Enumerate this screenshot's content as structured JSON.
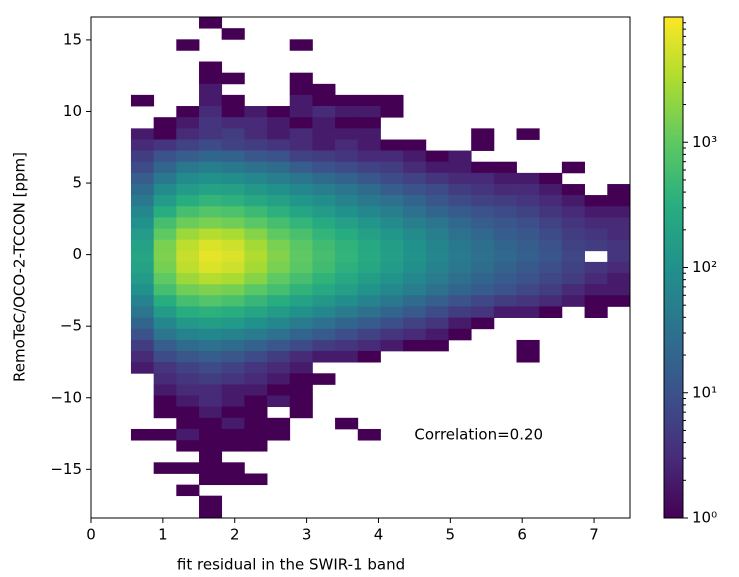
{
  "chart_data": {
    "type": "hist2d",
    "xlabel": "fit residual in the SWIR-1 band",
    "ylabel": "RemoTeC/OCO-2-TCCON [ppm]",
    "annotation": "Correlation=0.20",
    "colormap": "viridis",
    "log_color": true,
    "xlim": [
      0,
      7.5
    ],
    "ylim": [
      -18.4,
      16.6
    ],
    "xticks": [
      0,
      1,
      2,
      3,
      4,
      5,
      6,
      7
    ],
    "yticks": [
      {
        "value": -15,
        "label": "−15"
      },
      {
        "value": -10,
        "label": "−10"
      },
      {
        "value": -5,
        "label": "−5"
      },
      0,
      5,
      10,
      15
    ],
    "clim": [
      1,
      10000
    ],
    "cticks": [
      {
        "value": 1,
        "label": "10⁰"
      },
      {
        "value": 10,
        "label": "10¹"
      },
      {
        "value": 100,
        "label": "10²"
      },
      {
        "value": 1000,
        "label": "10³"
      }
    ],
    "xbins": [
      0.556,
      0.872,
      1.187,
      1.503,
      1.818,
      2.134,
      2.45,
      2.765,
      3.081,
      3.396,
      3.712,
      4.028,
      4.343,
      4.659,
      4.974,
      5.29,
      5.606,
      5.921,
      6.237,
      6.552,
      6.868,
      7.184,
      7.5
    ],
    "ybins": [
      16.6,
      15.82,
      15.04,
      14.27,
      13.49,
      12.71,
      11.93,
      11.16,
      10.38,
      9.6,
      8.82,
      8.04,
      7.27,
      6.49,
      5.71,
      4.93,
      4.16,
      3.38,
      2.6,
      1.82,
      1.04,
      0.27,
      -0.51,
      -1.29,
      -2.07,
      -2.84,
      -3.62,
      -4.4,
      -5.18,
      -5.96,
      -6.73,
      -7.51,
      -8.29,
      -9.07,
      -9.84,
      -10.62,
      -11.4,
      -12.18,
      -12.96,
      -13.73,
      -14.51,
      -15.29,
      -16.07,
      -16.84,
      -17.62,
      -18.4
    ],
    "counts": [
      [
        null,
        null,
        null,
        1,
        null,
        null,
        null,
        null,
        null,
        null,
        null,
        null,
        null,
        null,
        null,
        null,
        null,
        null,
        null,
        null,
        null,
        null
      ],
      [
        null,
        null,
        null,
        null,
        1,
        null,
        null,
        null,
        null,
        null,
        null,
        null,
        null,
        null,
        null,
        null,
        null,
        null,
        null,
        null,
        null,
        null
      ],
      [
        null,
        null,
        1,
        null,
        null,
        null,
        null,
        1,
        null,
        null,
        null,
        null,
        null,
        null,
        null,
        null,
        null,
        null,
        null,
        null,
        null,
        null
      ],
      [
        null,
        null,
        null,
        null,
        null,
        null,
        null,
        null,
        null,
        null,
        null,
        null,
        null,
        null,
        null,
        null,
        null,
        null,
        null,
        null,
        null,
        null
      ],
      [
        null,
        null,
        null,
        1,
        null,
        null,
        null,
        null,
        null,
        null,
        null,
        null,
        null,
        null,
        null,
        null,
        null,
        null,
        null,
        null,
        null,
        null
      ],
      [
        null,
        null,
        null,
        1,
        1,
        null,
        null,
        1,
        null,
        null,
        null,
        null,
        null,
        null,
        null,
        null,
        null,
        null,
        null,
        null,
        null,
        null
      ],
      [
        null,
        null,
        null,
        2,
        null,
        null,
        null,
        1,
        1,
        null,
        null,
        null,
        null,
        null,
        null,
        null,
        null,
        null,
        null,
        null,
        null,
        null
      ],
      [
        1,
        null,
        null,
        2,
        1,
        null,
        null,
        2,
        1,
        1,
        1,
        1,
        null,
        null,
        null,
        null,
        null,
        null,
        null,
        null,
        null,
        null
      ],
      [
        null,
        null,
        1,
        3,
        1,
        2,
        1,
        2,
        3,
        2,
        2,
        1,
        null,
        null,
        null,
        null,
        null,
        null,
        null,
        null,
        null,
        null
      ],
      [
        null,
        1,
        2,
        4,
        3,
        3,
        2,
        1,
        2,
        1,
        1,
        null,
        null,
        null,
        null,
        null,
        null,
        null,
        null,
        null,
        null,
        null
      ],
      [
        2,
        1,
        3,
        4,
        5,
        3,
        2,
        3,
        2,
        2,
        2,
        null,
        null,
        null,
        null,
        1,
        null,
        1,
        null,
        null,
        null,
        null
      ],
      [
        3,
        4,
        6,
        8,
        6,
        5,
        4,
        3,
        2,
        3,
        2,
        1,
        1,
        null,
        null,
        1,
        null,
        null,
        null,
        null,
        null,
        null
      ],
      [
        5,
        10,
        15,
        20,
        18,
        12,
        10,
        6,
        5,
        4,
        3,
        3,
        2,
        1,
        2,
        null,
        null,
        null,
        null,
        null,
        null,
        null
      ],
      [
        8,
        20,
        40,
        50,
        40,
        30,
        25,
        15,
        10,
        8,
        6,
        5,
        3,
        2,
        2,
        1,
        1,
        null,
        null,
        1,
        null,
        null
      ],
      [
        15,
        40,
        80,
        100,
        90,
        70,
        50,
        35,
        25,
        18,
        12,
        8,
        6,
        4,
        3,
        3,
        2,
        2,
        1,
        null,
        null,
        null
      ],
      [
        25,
        80,
        150,
        200,
        180,
        130,
        100,
        70,
        50,
        35,
        25,
        15,
        10,
        8,
        5,
        4,
        3,
        3,
        2,
        1,
        null,
        1
      ],
      [
        40,
        150,
        300,
        400,
        350,
        250,
        180,
        120,
        90,
        60,
        40,
        30,
        20,
        12,
        8,
        6,
        5,
        4,
        3,
        2,
        1,
        1
      ],
      [
        70,
        300,
        600,
        800,
        700,
        500,
        350,
        220,
        150,
        100,
        70,
        50,
        30,
        20,
        14,
        10,
        8,
        6,
        4,
        3,
        2,
        2
      ],
      [
        100,
        600,
        1200,
        1500,
        1300,
        900,
        600,
        400,
        260,
        180,
        120,
        80,
        50,
        35,
        22,
        15,
        12,
        9,
        6,
        4,
        3,
        3
      ],
      [
        150,
        1000,
        2500,
        3500,
        3000,
        1800,
        1000,
        650,
        400,
        280,
        180,
        120,
        80,
        50,
        30,
        22,
        15,
        12,
        8,
        5,
        4,
        3
      ],
      [
        200,
        1500,
        4000,
        6000,
        5000,
        2800,
        1500,
        900,
        550,
        380,
        250,
        160,
        100,
        65,
        40,
        28,
        20,
        15,
        10,
        6,
        5,
        4
      ],
      [
        220,
        1600,
        4500,
        7000,
        6000,
        3200,
        1700,
        1000,
        600,
        400,
        270,
        170,
        110,
        70,
        42,
        30,
        22,
        16,
        11,
        7,
        null,
        4
      ],
      [
        200,
        1400,
        4000,
        6000,
        5000,
        2800,
        1500,
        900,
        550,
        350,
        230,
        150,
        95,
        60,
        38,
        26,
        18,
        13,
        9,
        6,
        4,
        3
      ],
      [
        150,
        1000,
        2500,
        3500,
        3000,
        1800,
        1000,
        600,
        380,
        250,
        160,
        110,
        70,
        45,
        28,
        20,
        14,
        10,
        7,
        5,
        3,
        2
      ],
      [
        100,
        600,
        1300,
        1600,
        1400,
        900,
        600,
        380,
        250,
        170,
        110,
        75,
        50,
        30,
        20,
        14,
        10,
        7,
        5,
        3,
        2,
        2
      ],
      [
        60,
        300,
        600,
        800,
        650,
        450,
        300,
        200,
        130,
        90,
        60,
        40,
        25,
        16,
        10,
        7,
        5,
        4,
        3,
        2,
        1,
        1
      ],
      [
        35,
        150,
        300,
        350,
        300,
        220,
        150,
        100,
        70,
        45,
        30,
        20,
        13,
        8,
        5,
        4,
        2,
        2,
        1,
        null,
        1,
        null
      ],
      [
        20,
        70,
        130,
        160,
        140,
        100,
        70,
        45,
        30,
        20,
        14,
        9,
        6,
        4,
        2,
        1,
        null,
        null,
        null,
        null,
        null,
        null
      ],
      [
        10,
        35,
        60,
        70,
        60,
        45,
        30,
        20,
        14,
        9,
        6,
        4,
        3,
        2,
        1,
        null,
        null,
        null,
        null,
        null,
        null,
        null
      ],
      [
        5,
        15,
        25,
        30,
        25,
        18,
        12,
        8,
        5,
        4,
        3,
        2,
        1,
        1,
        null,
        null,
        null,
        1,
        null,
        null,
        null,
        null
      ],
      [
        3,
        8,
        12,
        15,
        12,
        8,
        5,
        3,
        2,
        2,
        1,
        null,
        null,
        null,
        null,
        null,
        null,
        1,
        null,
        null,
        null,
        null
      ],
      [
        2,
        4,
        6,
        8,
        6,
        4,
        3,
        2,
        null,
        null,
        null,
        null,
        null,
        null,
        null,
        null,
        null,
        null,
        null,
        null,
        null,
        null
      ],
      [
        null,
        3,
        4,
        5,
        4,
        3,
        2,
        1,
        1,
        null,
        null,
        null,
        null,
        null,
        null,
        null,
        null,
        null,
        null,
        null,
        null,
        null
      ],
      [
        null,
        2,
        3,
        3,
        2,
        2,
        1,
        1,
        null,
        null,
        null,
        null,
        null,
        null,
        null,
        null,
        null,
        null,
        null,
        null,
        null,
        null
      ],
      [
        null,
        1,
        2,
        3,
        2,
        1,
        2,
        1,
        null,
        null,
        null,
        null,
        null,
        null,
        null,
        null,
        null,
        null,
        null,
        null,
        null,
        null
      ],
      [
        null,
        1,
        1,
        2,
        1,
        1,
        null,
        1,
        null,
        null,
        null,
        null,
        null,
        null,
        null,
        null,
        null,
        null,
        null,
        null,
        null,
        null
      ],
      [
        null,
        null,
        1,
        1,
        2,
        1,
        1,
        null,
        null,
        1,
        null,
        null,
        null,
        null,
        null,
        null,
        null,
        null,
        null,
        null,
        null,
        null
      ],
      [
        1,
        1,
        2,
        1,
        1,
        1,
        1,
        null,
        null,
        null,
        1,
        null,
        null,
        null,
        null,
        null,
        null,
        null,
        null,
        null,
        null,
        null
      ],
      [
        null,
        null,
        1,
        1,
        1,
        1,
        null,
        null,
        null,
        null,
        null,
        null,
        null,
        null,
        null,
        null,
        null,
        null,
        null,
        null,
        null,
        null
      ],
      [
        null,
        null,
        null,
        1,
        null,
        null,
        null,
        null,
        null,
        null,
        null,
        null,
        null,
        null,
        null,
        null,
        null,
        null,
        null,
        null,
        null,
        null
      ],
      [
        null,
        1,
        1,
        1,
        1,
        null,
        null,
        null,
        null,
        null,
        null,
        null,
        null,
        null,
        null,
        null,
        null,
        null,
        null,
        null,
        null,
        null
      ],
      [
        null,
        null,
        null,
        1,
        1,
        1,
        null,
        null,
        null,
        null,
        null,
        null,
        null,
        null,
        null,
        null,
        null,
        null,
        null,
        null,
        null,
        null
      ],
      [
        null,
        null,
        1,
        null,
        null,
        null,
        null,
        null,
        null,
        null,
        null,
        null,
        null,
        null,
        null,
        null,
        null,
        null,
        null,
        null,
        null,
        null
      ],
      [
        null,
        null,
        null,
        1,
        null,
        null,
        null,
        null,
        null,
        null,
        null,
        null,
        null,
        null,
        null,
        null,
        null,
        null,
        null,
        null,
        null,
        null
      ],
      [
        null,
        null,
        null,
        1,
        null,
        null,
        null,
        null,
        null,
        null,
        null,
        null,
        null,
        null,
        null,
        null,
        null,
        null,
        null,
        null,
        null,
        null
      ]
    ]
  }
}
